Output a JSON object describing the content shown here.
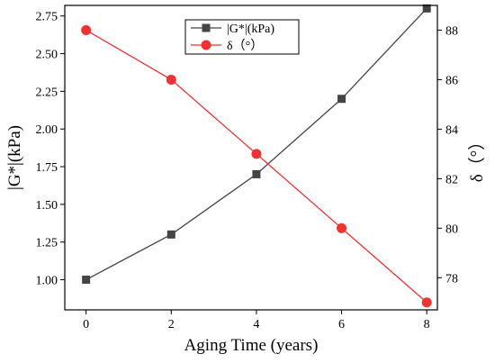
{
  "chart_data": {
    "type": "line",
    "xlabel": "Aging Time (years)",
    "ylabel_left": "|G*|(kPa)",
    "ylabel_right": "δ（°）",
    "x": [
      0,
      2,
      4,
      6,
      8
    ],
    "x_ticks": [
      "0",
      "2",
      "4",
      "6",
      "8"
    ],
    "xlim": [
      -0.5,
      8.25
    ],
    "ylim_left": [
      0.8,
      2.82
    ],
    "ylim_right": [
      76.7,
      89.0
    ],
    "yticks_left": [
      "1.00",
      "1.25",
      "1.50",
      "1.75",
      "2.00",
      "2.25",
      "2.50",
      "2.75"
    ],
    "yticks_right": [
      "78",
      "80",
      "82",
      "84",
      "86",
      "88"
    ],
    "legend_position": "top-center",
    "grid": false,
    "series": [
      {
        "name": "|G*|(kPa)",
        "axis": "left",
        "marker": "square",
        "color": "#444444",
        "values": [
          1.0,
          1.3,
          1.7,
          2.2,
          2.8
        ]
      },
      {
        "name": "δ（°）",
        "axis": "right",
        "marker": "circle",
        "color": "#ee3333",
        "values": [
          88,
          86,
          83,
          80,
          77
        ]
      }
    ]
  }
}
